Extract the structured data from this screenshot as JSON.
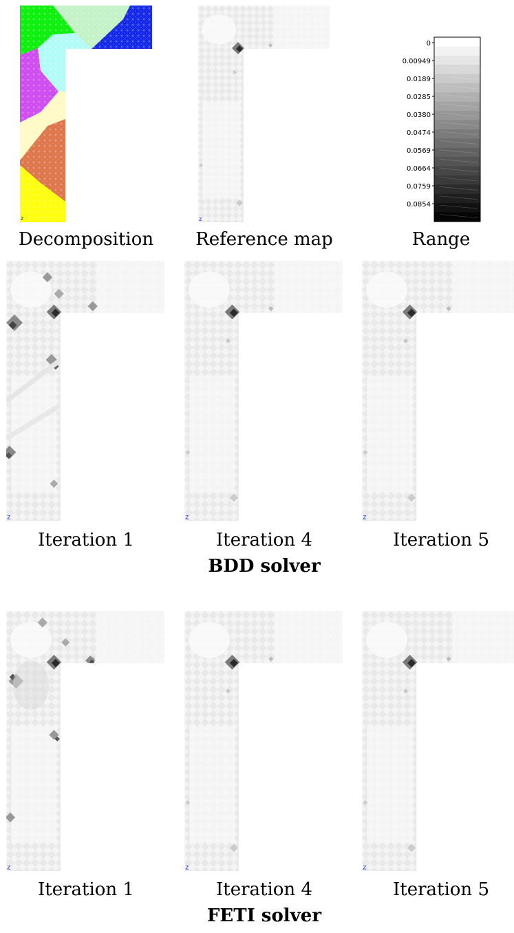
{
  "figure": {
    "top_row": {
      "captions": [
        "Decomposition",
        "Reference map",
        "Range"
      ]
    },
    "decomposition": {
      "subdomain_colors": [
        "#00ee00",
        "#c0f2c4",
        "#0a1fe8",
        "#aefcf8",
        "#cc44ee",
        "#fffac4",
        "#dc7044",
        "#ffff00"
      ]
    },
    "range": {
      "labels": [
        "0",
        "0.00949",
        "0.0189",
        "0.0285",
        "0.0380",
        "0.0474",
        "0.0569",
        "0.0664",
        "0.0759",
        "0.0854"
      ]
    },
    "axis_marker": "z",
    "bdd": {
      "captions": [
        "Iteration 1",
        "Iteration 4",
        "Iteration 5"
      ],
      "solver_label": "BDD solver"
    },
    "feti": {
      "captions": [
        "Iteration 1",
        "Iteration 4",
        "Iteration 5"
      ],
      "solver_label": "FETI solver"
    }
  }
}
